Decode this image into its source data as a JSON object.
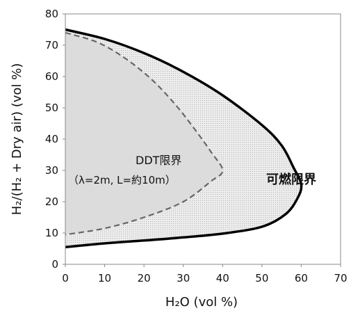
{
  "chart_data": {
    "type": "area",
    "xlabel": "H₂O (vol %)",
    "ylabel": "H₂/(H₂ + Dry air)  (vol %)",
    "xlim": [
      0,
      70
    ],
    "ylim": [
      0,
      80
    ],
    "x_ticks": [
      "0",
      "10",
      "20",
      "30",
      "40",
      "50",
      "60",
      "70"
    ],
    "y_ticks": [
      "0",
      "10",
      "20",
      "30",
      "40",
      "50",
      "60",
      "70",
      "80"
    ],
    "grid": false,
    "series": [
      {
        "name": "可燃限界",
        "style": "solid",
        "points": [
          [
            0,
            75
          ],
          [
            10,
            72
          ],
          [
            20,
            67.5
          ],
          [
            30,
            61.5
          ],
          [
            40,
            54
          ],
          [
            50,
            44.5
          ],
          [
            55,
            38
          ],
          [
            58,
            31
          ],
          [
            60,
            25.5
          ],
          [
            59,
            21
          ],
          [
            56,
            16
          ],
          [
            50,
            12
          ],
          [
            40,
            9.8
          ],
          [
            30,
            8.6
          ],
          [
            20,
            7.6
          ],
          [
            10,
            6.7
          ],
          [
            0,
            5.5
          ]
        ]
      },
      {
        "name": "DDT限界",
        "style": "dashed",
        "points": [
          [
            0,
            74
          ],
          [
            8,
            71
          ],
          [
            15,
            66
          ],
          [
            22,
            59
          ],
          [
            28,
            51
          ],
          [
            33,
            43
          ],
          [
            37,
            36
          ],
          [
            40,
            30
          ],
          [
            37,
            26.5
          ],
          [
            30,
            20
          ],
          [
            20,
            15
          ],
          [
            10,
            11.5
          ],
          [
            0,
            9.5
          ]
        ]
      }
    ],
    "annotations": {
      "ddt_label": "DDT限界",
      "ddt_condition": "（λ=2m, L=約10m）",
      "flammability_label": "可燃限界"
    }
  }
}
